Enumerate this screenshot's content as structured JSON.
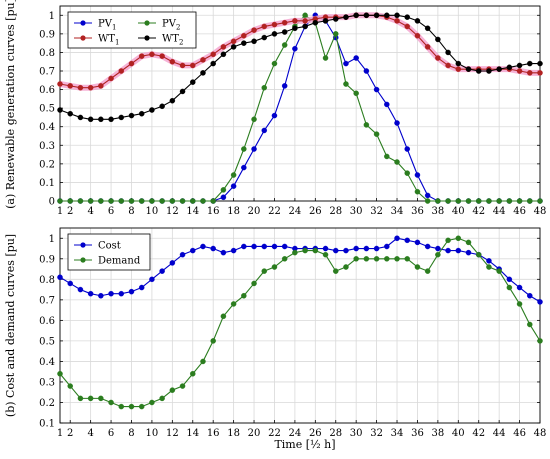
{
  "chart_data": [
    {
      "type": "line",
      "ylabel": "(a) Renewable generation curves [pu]",
      "xlim": [
        1,
        48
      ],
      "ylim": [
        0,
        1.05
      ],
      "grid": true,
      "legend_position": "top-left",
      "x_ticks": [
        1,
        2,
        4,
        6,
        8,
        10,
        12,
        14,
        16,
        18,
        20,
        22,
        24,
        26,
        28,
        30,
        32,
        34,
        36,
        38,
        40,
        42,
        44,
        46,
        48
      ],
      "y_ticks": [
        0,
        0.1,
        0.2,
        0.3,
        0.4,
        0.5,
        0.6,
        0.7,
        0.8,
        0.9,
        1
      ],
      "x": [
        1,
        2,
        3,
        4,
        5,
        6,
        7,
        8,
        9,
        10,
        11,
        12,
        13,
        14,
        15,
        16,
        17,
        18,
        19,
        20,
        21,
        22,
        23,
        24,
        25,
        26,
        27,
        28,
        29,
        30,
        31,
        32,
        33,
        34,
        35,
        36,
        37,
        38,
        39,
        40,
        41,
        42,
        43,
        44,
        45,
        46,
        47,
        48
      ],
      "series": [
        {
          "name": "PV",
          "sub": "1",
          "color": "#0000cc",
          "legend_col": 0,
          "legend_row": 0,
          "values": [
            0,
            0,
            0,
            0,
            0,
            0,
            0,
            0,
            0,
            0,
            0,
            0,
            0,
            0,
            0,
            0,
            0.02,
            0.08,
            0.18,
            0.28,
            0.38,
            0.46,
            0.62,
            0.82,
            0.94,
            1.0,
            0.97,
            0.88,
            0.74,
            0.77,
            0.7,
            0.6,
            0.52,
            0.42,
            0.28,
            0.14,
            0.03,
            0,
            0,
            0,
            0,
            0,
            0,
            0,
            0,
            0,
            0,
            0
          ]
        },
        {
          "name": "PV",
          "sub": "2",
          "color": "#2b7d1f",
          "legend_col": 1,
          "legend_row": 0,
          "values": [
            0,
            0,
            0,
            0,
            0,
            0,
            0,
            0,
            0,
            0,
            0,
            0,
            0,
            0,
            0,
            0,
            0.06,
            0.14,
            0.28,
            0.44,
            0.61,
            0.74,
            0.84,
            0.94,
            1.0,
            0.96,
            0.77,
            0.9,
            0.63,
            0.58,
            0.41,
            0.36,
            0.24,
            0.21,
            0.15,
            0.05,
            0,
            0,
            0,
            0,
            0,
            0,
            0,
            0,
            0,
            0,
            0,
            0
          ]
        },
        {
          "name": "WT",
          "sub": "1",
          "color": "#b22222",
          "legend_col": 0,
          "legend_row": 1,
          "halo": "#f4a6d0",
          "values": [
            0.63,
            0.62,
            0.61,
            0.61,
            0.62,
            0.66,
            0.7,
            0.74,
            0.78,
            0.79,
            0.78,
            0.75,
            0.73,
            0.73,
            0.76,
            0.79,
            0.83,
            0.86,
            0.89,
            0.92,
            0.94,
            0.95,
            0.96,
            0.97,
            0.97,
            0.98,
            0.99,
            0.99,
            0.99,
            1.0,
            1.0,
            1.0,
            0.99,
            0.97,
            0.94,
            0.89,
            0.83,
            0.77,
            0.73,
            0.71,
            0.71,
            0.71,
            0.71,
            0.71,
            0.71,
            0.7,
            0.69,
            0.69
          ]
        },
        {
          "name": "WT",
          "sub": "2",
          "color": "#000000",
          "legend_col": 1,
          "legend_row": 1,
          "values": [
            0.49,
            0.47,
            0.45,
            0.44,
            0.44,
            0.44,
            0.45,
            0.46,
            0.47,
            0.49,
            0.51,
            0.54,
            0.59,
            0.64,
            0.69,
            0.74,
            0.79,
            0.83,
            0.85,
            0.86,
            0.88,
            0.9,
            0.91,
            0.93,
            0.94,
            0.96,
            0.97,
            0.98,
            0.99,
            1.0,
            1.0,
            1.0,
            1.0,
            1.0,
            0.99,
            0.97,
            0.93,
            0.87,
            0.8,
            0.74,
            0.71,
            0.7,
            0.7,
            0.71,
            0.72,
            0.73,
            0.74,
            0.74
          ]
        }
      ]
    },
    {
      "type": "line",
      "ylabel": "(b) Cost and demand curves [pu]",
      "xlabel": "Time [½ h]",
      "xlim": [
        1,
        48
      ],
      "ylim": [
        0.1,
        1.05
      ],
      "grid": true,
      "legend_position": "top-left",
      "x_ticks": [
        1,
        2,
        4,
        6,
        8,
        10,
        12,
        14,
        16,
        18,
        20,
        22,
        24,
        26,
        28,
        30,
        32,
        34,
        36,
        38,
        40,
        42,
        44,
        46,
        48
      ],
      "y_ticks": [
        0.1,
        0.2,
        0.3,
        0.4,
        0.5,
        0.6,
        0.7,
        0.8,
        0.9,
        1
      ],
      "x": [
        1,
        2,
        3,
        4,
        5,
        6,
        7,
        8,
        9,
        10,
        11,
        12,
        13,
        14,
        15,
        16,
        17,
        18,
        19,
        20,
        21,
        22,
        23,
        24,
        25,
        26,
        27,
        28,
        29,
        30,
        31,
        32,
        33,
        34,
        35,
        36,
        37,
        38,
        39,
        40,
        41,
        42,
        43,
        44,
        45,
        46,
        47,
        48
      ],
      "series": [
        {
          "name": "Cost",
          "color": "#0000cc",
          "legend_col": 0,
          "legend_row": 0,
          "values": [
            0.81,
            0.78,
            0.75,
            0.73,
            0.72,
            0.73,
            0.73,
            0.74,
            0.76,
            0.8,
            0.84,
            0.88,
            0.92,
            0.94,
            0.96,
            0.95,
            0.93,
            0.94,
            0.96,
            0.96,
            0.96,
            0.96,
            0.96,
            0.95,
            0.95,
            0.95,
            0.95,
            0.94,
            0.94,
            0.95,
            0.95,
            0.95,
            0.96,
            1.0,
            0.99,
            0.98,
            0.96,
            0.95,
            0.94,
            0.94,
            0.93,
            0.92,
            0.89,
            0.85,
            0.8,
            0.76,
            0.72,
            0.69
          ]
        },
        {
          "name": "Demand",
          "color": "#2b7d1f",
          "legend_col": 0,
          "legend_row": 1,
          "values": [
            0.34,
            0.28,
            0.22,
            0.22,
            0.22,
            0.2,
            0.18,
            0.18,
            0.18,
            0.2,
            0.22,
            0.26,
            0.28,
            0.34,
            0.4,
            0.5,
            0.62,
            0.68,
            0.72,
            0.78,
            0.84,
            0.86,
            0.9,
            0.93,
            0.94,
            0.94,
            0.92,
            0.84,
            0.86,
            0.9,
            0.9,
            0.9,
            0.9,
            0.9,
            0.9,
            0.86,
            0.84,
            0.92,
            0.99,
            1.0,
            0.98,
            0.92,
            0.86,
            0.84,
            0.76,
            0.68,
            0.58,
            0.5
          ]
        }
      ]
    }
  ]
}
